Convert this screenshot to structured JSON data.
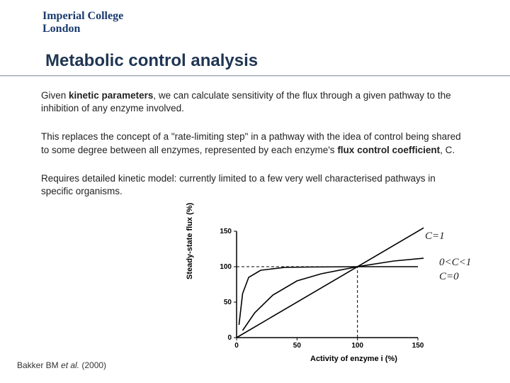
{
  "logo": {
    "line1": "Imperial College",
    "line2": "London"
  },
  "title": "Metabolic control analysis",
  "para1_pre": "Given ",
  "para1_bold": "kinetic parameters",
  "para1_post": ", we can calculate sensitivity of the flux through a given pathway to the inhibition of any enzyme involved.",
  "para2_pre": "This replaces the concept of a \"rate-limiting step\" in a pathway with the idea of control being shared to some degree between all enzymes, represented by each enzyme's ",
  "para2_bold": "flux control coefficient",
  "para2_post": ", C.",
  "para3": "Requires detailed kinetic model: currently limited to a few very well characterised pathways in specific organisms.",
  "citation_pre": "Bakker BM ",
  "citation_em": "et al.",
  "citation_post": " (2000)",
  "annot_c1": "C=1",
  "annot_cmid": "0<C<1",
  "annot_c0": "C=0",
  "chart": {
    "type": "line",
    "xlim": [
      0,
      150
    ],
    "ylim": [
      0,
      150
    ],
    "xticks": [
      0,
      50,
      100,
      150
    ],
    "yticks": [
      0,
      50,
      100,
      150
    ],
    "ylabel": "Steady-state flux (%)",
    "xlabel": "Activity of enzyme i (%)",
    "axis_color": "#000000",
    "line_color": "#000000",
    "line_width": 1.6,
    "dash_color": "#000000",
    "tick_fontsize": 10,
    "background": "#ffffff",
    "ref_x": 100,
    "ref_y": 100,
    "curve_c0": [
      [
        2,
        18
      ],
      [
        5,
        62
      ],
      [
        10,
        85
      ],
      [
        20,
        95
      ],
      [
        40,
        99
      ],
      [
        60,
        99.5
      ],
      [
        100,
        100
      ],
      [
        150,
        100
      ]
    ],
    "curve_mid": [
      [
        5,
        10
      ],
      [
        15,
        35
      ],
      [
        30,
        60
      ],
      [
        50,
        80
      ],
      [
        70,
        90
      ],
      [
        100,
        100
      ],
      [
        130,
        108
      ],
      [
        155,
        112
      ]
    ],
    "curve_c1": [
      [
        0,
        0
      ],
      [
        155,
        155
      ]
    ]
  }
}
